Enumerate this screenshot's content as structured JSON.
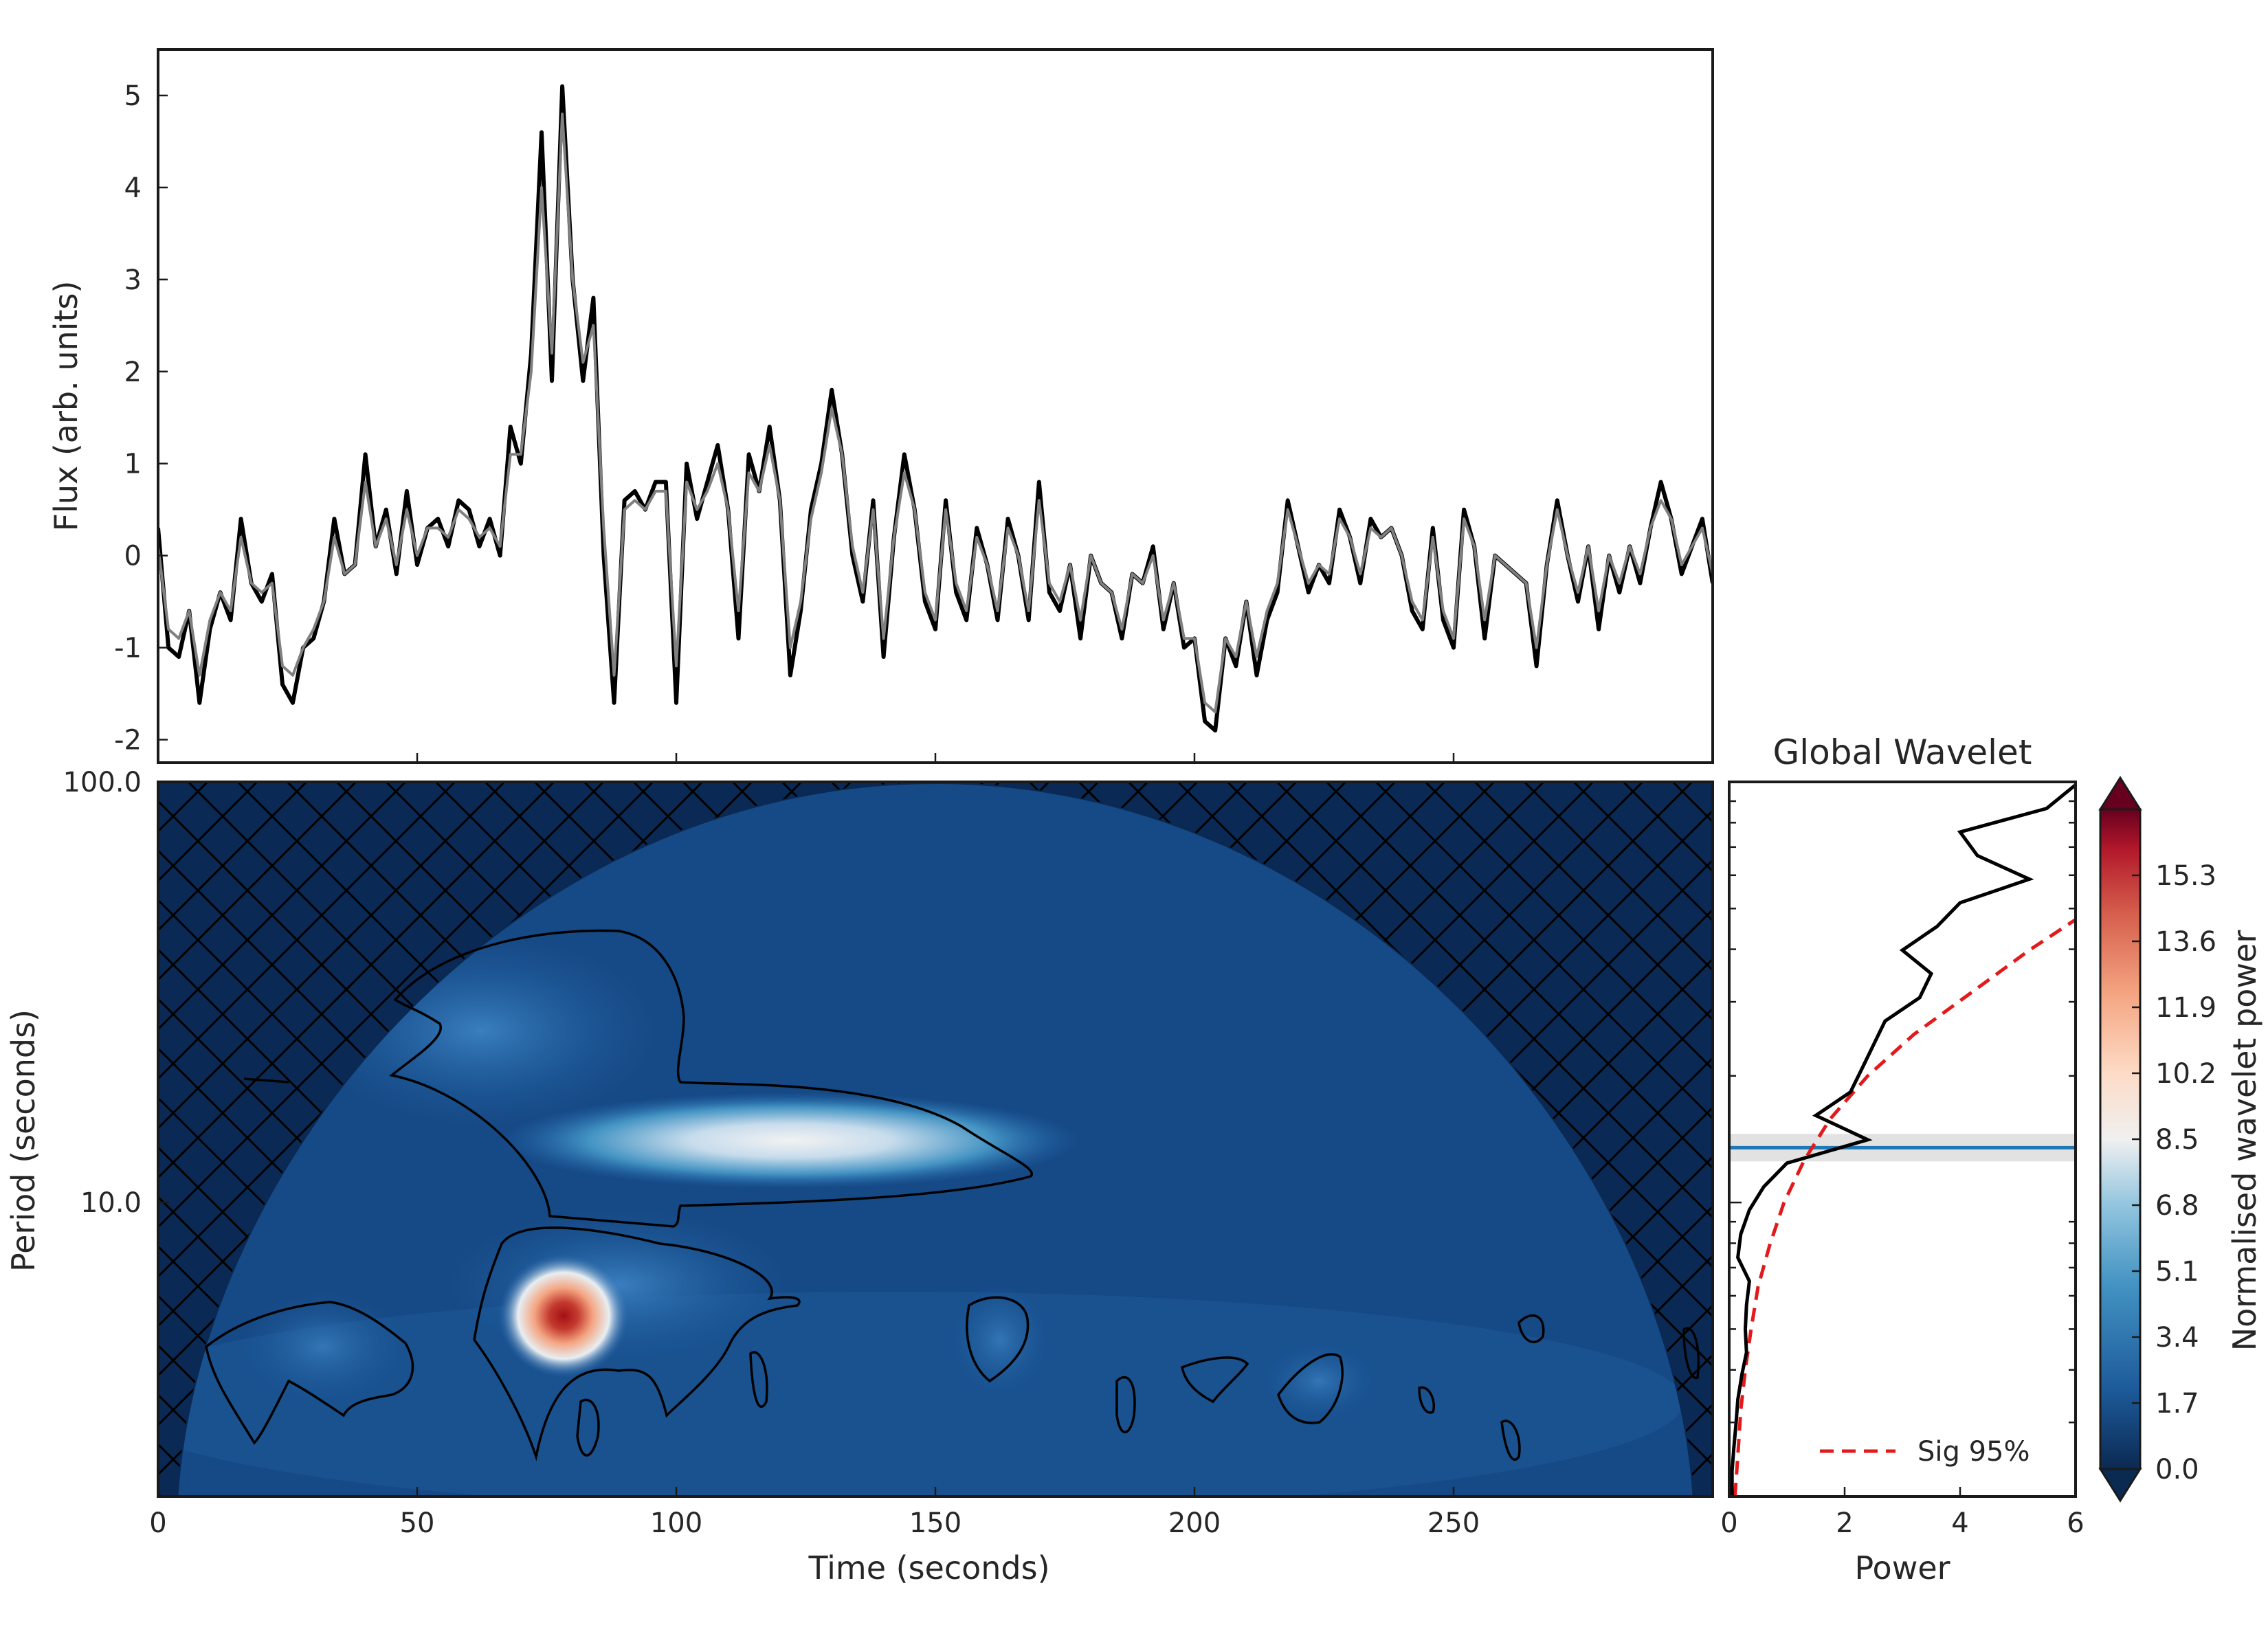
{
  "chart_data": [
    {
      "type": "line",
      "panel": "light-curve",
      "xlabel": "",
      "ylabel": "Flux (arb. units)",
      "xlim": [
        0,
        300
      ],
      "ylim": [
        -2.25,
        5.5
      ],
      "yticks": [
        -2,
        -1,
        0,
        1,
        2,
        3,
        4,
        5
      ],
      "xticks": [
        50,
        100,
        150,
        200,
        250
      ],
      "grid": false,
      "series": [
        {
          "color": "#000000",
          "x": [
            0,
            2,
            4,
            6,
            8,
            10,
            12,
            14,
            16,
            18,
            20,
            22,
            24,
            26,
            28,
            30,
            32,
            34,
            36,
            38,
            40,
            42,
            44,
            46,
            48,
            50,
            52,
            54,
            56,
            58,
            60,
            62,
            64,
            66,
            68,
            70,
            72,
            74,
            76,
            78,
            80,
            82,
            84,
            86,
            88,
            90,
            92,
            94,
            96,
            98,
            100,
            102,
            104,
            106,
            108,
            110,
            112,
            114,
            116,
            118,
            120,
            122,
            124,
            126,
            128,
            130,
            132,
            134,
            136,
            138,
            140,
            142,
            144,
            146,
            148,
            150,
            152,
            154,
            156,
            158,
            160,
            162,
            164,
            166,
            168,
            170,
            172,
            174,
            176,
            178,
            180,
            182,
            184,
            186,
            188,
            190,
            192,
            194,
            196,
            198,
            200,
            202,
            204,
            206,
            208,
            210,
            212,
            214,
            216,
            218,
            220,
            222,
            224,
            226,
            228,
            230,
            232,
            234,
            236,
            238,
            240,
            242,
            244,
            246,
            248,
            250,
            252,
            254,
            256,
            258,
            260,
            262,
            264,
            266,
            268,
            270,
            272,
            274,
            276,
            278,
            280,
            282,
            284,
            286,
            288,
            290,
            292,
            294,
            296,
            298,
            300
          ],
          "y": [
            0.3,
            -1.0,
            -1.1,
            -0.6,
            -1.6,
            -0.8,
            -0.4,
            -0.7,
            0.4,
            -0.3,
            -0.5,
            -0.2,
            -1.4,
            -1.6,
            -1.0,
            -0.9,
            -0.5,
            0.4,
            -0.2,
            -0.1,
            1.1,
            0.1,
            0.5,
            -0.2,
            0.7,
            -0.1,
            0.3,
            0.4,
            0.1,
            0.6,
            0.5,
            0.1,
            0.4,
            0.0,
            1.4,
            1.0,
            2.2,
            4.6,
            1.9,
            5.1,
            3.0,
            1.9,
            2.8,
            0.0,
            -1.6,
            0.6,
            0.7,
            0.5,
            0.8,
            0.8,
            -1.6,
            1.0,
            0.4,
            0.8,
            1.2,
            0.5,
            -0.9,
            1.1,
            0.7,
            1.4,
            0.6,
            -1.3,
            -0.6,
            0.5,
            1.0,
            1.8,
            1.1,
            0.0,
            -0.5,
            0.6,
            -1.1,
            0.2,
            1.1,
            0.5,
            -0.5,
            -0.8,
            0.6,
            -0.4,
            -0.7,
            0.3,
            -0.1,
            -0.7,
            0.4,
            0.0,
            -0.7,
            0.8,
            -0.4,
            -0.6,
            -0.1,
            -0.9,
            0.0,
            -0.3,
            -0.4,
            -0.9,
            -0.2,
            -0.3,
            0.1,
            -0.8,
            -0.3,
            -1.0,
            -0.9,
            -1.8,
            -1.9,
            -0.9,
            -1.2,
            -0.5,
            -1.3,
            -0.7,
            -0.4,
            0.6,
            0.1,
            -0.4,
            -0.1,
            -0.3,
            0.5,
            0.2,
            -0.3,
            0.4,
            0.2,
            0.3,
            0.0,
            -0.6,
            -0.8,
            0.3,
            -0.7,
            -1.0,
            0.5,
            0.1,
            -0.9,
            0.0,
            -0.1,
            -0.2,
            -0.3,
            -1.2,
            -0.1,
            0.6,
            0.0,
            -0.5,
            0.1,
            -0.8,
            0.0,
            -0.4,
            0.1,
            -0.3,
            0.3,
            0.8,
            0.4,
            -0.2,
            0.1,
            0.4,
            -0.3
          ],
          "name": ""
        },
        {
          "color": "#808080",
          "x": [
            0,
            2,
            4,
            6,
            8,
            10,
            12,
            14,
            16,
            18,
            20,
            22,
            24,
            26,
            28,
            30,
            32,
            34,
            36,
            38,
            40,
            42,
            44,
            46,
            48,
            50,
            52,
            54,
            56,
            58,
            60,
            62,
            64,
            66,
            68,
            70,
            72,
            74,
            76,
            78,
            80,
            82,
            84,
            86,
            88,
            90,
            92,
            94,
            96,
            98,
            100,
            102,
            104,
            106,
            108,
            110,
            112,
            114,
            116,
            118,
            120,
            122,
            124,
            126,
            128,
            130,
            132,
            134,
            136,
            138,
            140,
            142,
            144,
            146,
            148,
            150,
            152,
            154,
            156,
            158,
            160,
            162,
            164,
            166,
            168,
            170,
            172,
            174,
            176,
            178,
            180,
            182,
            184,
            186,
            188,
            190,
            192,
            194,
            196,
            198,
            200,
            202,
            204,
            206,
            208,
            210,
            212,
            214,
            216,
            218,
            220,
            222,
            224,
            226,
            228,
            230,
            232,
            234,
            236,
            238,
            240,
            242,
            244,
            246,
            248,
            250,
            252,
            254,
            256,
            258,
            260,
            262,
            264,
            266,
            268,
            270,
            272,
            274,
            276,
            278,
            280,
            282,
            284,
            286,
            288,
            290,
            292,
            294,
            296,
            298,
            300
          ],
          "y": [
            0.1,
            -0.8,
            -0.9,
            -0.6,
            -1.3,
            -0.7,
            -0.4,
            -0.6,
            0.2,
            -0.3,
            -0.4,
            -0.3,
            -1.2,
            -1.3,
            -1.0,
            -0.8,
            -0.5,
            0.2,
            -0.2,
            -0.1,
            0.8,
            0.1,
            0.4,
            -0.1,
            0.5,
            0.0,
            0.3,
            0.3,
            0.2,
            0.5,
            0.4,
            0.2,
            0.3,
            0.1,
            1.1,
            1.1,
            2.0,
            4.0,
            2.2,
            4.8,
            3.0,
            2.1,
            2.5,
            0.3,
            -1.3,
            0.5,
            0.6,
            0.5,
            0.7,
            0.7,
            -1.2,
            0.8,
            0.5,
            0.7,
            1.0,
            0.5,
            -0.6,
            0.9,
            0.7,
            1.2,
            0.6,
            -1.0,
            -0.5,
            0.4,
            0.9,
            1.6,
            1.1,
            0.1,
            -0.4,
            0.5,
            -0.9,
            0.2,
            0.9,
            0.5,
            -0.4,
            -0.7,
            0.5,
            -0.3,
            -0.6,
            0.2,
            -0.1,
            -0.6,
            0.3,
            0.0,
            -0.6,
            0.6,
            -0.3,
            -0.5,
            -0.1,
            -0.7,
            0.0,
            -0.3,
            -0.4,
            -0.8,
            -0.2,
            -0.3,
            0.0,
            -0.7,
            -0.3,
            -0.9,
            -0.9,
            -1.6,
            -1.7,
            -0.9,
            -1.1,
            -0.5,
            -1.1,
            -0.6,
            -0.3,
            0.5,
            0.1,
            -0.3,
            -0.1,
            -0.2,
            0.4,
            0.2,
            -0.2,
            0.3,
            0.2,
            0.3,
            0.0,
            -0.5,
            -0.7,
            0.2,
            -0.6,
            -0.9,
            0.4,
            0.1,
            -0.7,
            0.0,
            -0.1,
            -0.2,
            -0.3,
            -1.0,
            -0.1,
            0.5,
            0.0,
            -0.4,
            0.1,
            -0.6,
            0.0,
            -0.3,
            0.1,
            -0.2,
            0.3,
            0.6,
            0.4,
            -0.1,
            0.1,
            0.3,
            -0.2
          ],
          "name": ""
        }
      ]
    },
    {
      "type": "heatmap",
      "panel": "wavelet-power-spectrum",
      "xlabel": "Time (seconds)",
      "ylabel": "Period (seconds)",
      "xlim": [
        0,
        300
      ],
      "ylim": [
        2,
        100
      ],
      "yscale": "log",
      "xticks": [
        "0",
        "50",
        "100",
        "150",
        "200",
        "250"
      ],
      "xtick_values": [
        0,
        50,
        100,
        150,
        200,
        250
      ],
      "yticks": [
        "10.0",
        "100.0"
      ],
      "ytick_values": [
        10,
        100
      ],
      "peaks": [
        {
          "time": 125,
          "period": 13.5,
          "power": 7.5
        },
        {
          "time": 78,
          "period": 6.3,
          "power": 15.5
        }
      ],
      "cone_of_influence": "hatched region outside the dome",
      "significance_contours": true,
      "colormap": {
        "low": "#0a2a55",
        "mid": "#f7f7f7",
        "high": "#67001f"
      }
    },
    {
      "type": "line",
      "panel": "global-wavelet",
      "title": "Global Wavelet",
      "xlabel": "Power",
      "ylabel": "",
      "xlim": [
        0,
        6
      ],
      "xticks": [
        "0",
        "2",
        "4",
        "6"
      ],
      "xtick_values": [
        0,
        2,
        4,
        6
      ],
      "yscale": "log",
      "ylim": [
        2,
        100
      ],
      "series": [
        {
          "name": "",
          "color": "#000000",
          "style": "solid",
          "period": [
            2.0,
            2.3,
            2.6,
            3.0,
            3.4,
            3.9,
            4.4,
            5.0,
            5.7,
            6.5,
            7.4,
            8.4,
            9.6,
            10.9,
            12.4,
            14.1,
            16.1,
            18.3,
            20.8,
            23.7,
            27.0,
            30.7,
            35.0,
            39.8,
            45.3,
            51.6,
            58.7,
            66.8,
            76.0,
            86.5,
            98.4
          ],
          "power": [
            0.05,
            0.05,
            0.08,
            0.12,
            0.15,
            0.22,
            0.3,
            0.28,
            0.3,
            0.35,
            0.15,
            0.2,
            0.35,
            0.6,
            1.0,
            2.4,
            1.5,
            2.1,
            2.3,
            2.5,
            2.7,
            3.3,
            3.5,
            3.0,
            3.6,
            4.0,
            5.2,
            4.3,
            4.0,
            5.5,
            6.0
          ]
        },
        {
          "name": "Sig 95%",
          "color": "#e31a1c",
          "style": "dashed",
          "period": [
            2.0,
            2.5,
            3.2,
            4.0,
            5.0,
            6.3,
            7.9,
            10.0,
            12.6,
            15.8,
            20.0,
            25.1,
            31.6,
            39.8,
            50.1,
            63.1,
            79.4,
            100.0
          ],
          "power": [
            0.1,
            0.15,
            0.2,
            0.28,
            0.38,
            0.5,
            0.7,
            0.95,
            1.3,
            1.75,
            2.4,
            3.2,
            4.2,
            5.2,
            6.3,
            7.5,
            9.0,
            10.5
          ]
        }
      ],
      "highlight_period": 13.5,
      "highlight_color": "#1f77b4",
      "legend_position": "lower-right"
    },
    {
      "type": "colorbar",
      "panel": "colorbar",
      "label": "Normalised wavelet power",
      "ticks": [
        "0.0",
        "1.7",
        "3.4",
        "5.1",
        "6.8",
        "8.5",
        "10.2",
        "11.9",
        "13.6",
        "15.3"
      ],
      "tick_values": [
        0.0,
        1.7,
        3.4,
        5.1,
        6.8,
        8.5,
        10.2,
        11.9,
        13.6,
        15.3
      ],
      "vmax": 17.0
    }
  ]
}
